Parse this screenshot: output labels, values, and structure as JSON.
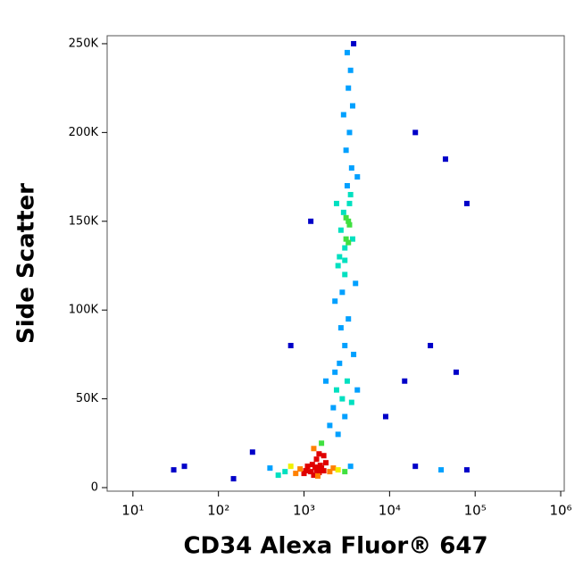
{
  "chart_data": {
    "type": "scatter",
    "x_label": "CD34 Alexa Fluor® 647",
    "y_label": "Side Scatter",
    "xscale": "log",
    "xlim": [
      5,
      1100000
    ],
    "xticks": [
      {
        "value": 10,
        "label": "10¹"
      },
      {
        "value": 100,
        "label": "10²"
      },
      {
        "value": 1000,
        "label": "10³"
      },
      {
        "value": 10000,
        "label": "10⁴"
      },
      {
        "value": 100000,
        "label": "10⁵"
      },
      {
        "value": 1000000,
        "label": "10⁶"
      }
    ],
    "ylim": [
      -2000,
      254500
    ],
    "yticks": [
      0,
      {
        "value": 50000,
        "label": "50K"
      },
      {
        "value": 100000,
        "label": "100K"
      },
      {
        "value": 150000,
        "label": "150K"
      },
      {
        "value": 200000,
        "label": "200K"
      },
      {
        "value": 250000,
        "label": "250K"
      }
    ],
    "colormap": [
      "#0000c8",
      "#00a0ff",
      "#00e0c0",
      "#40e040",
      "#f0f000",
      "#ff8000",
      "#e00000"
    ],
    "x": [
      1200,
      1400,
      1000,
      1600,
      1300,
      1100,
      1500,
      1700,
      900,
      1250,
      1450,
      1350,
      1050,
      1550,
      800,
      2000,
      2200,
      700,
      600,
      1800,
      1400,
      1500,
      1300,
      1600,
      1700,
      2500,
      3000,
      3500,
      500,
      400,
      2500,
      3000,
      2800,
      2400,
      3200,
      2600,
      3000,
      2200,
      3600,
      2000,
      2700,
      3300,
      2300,
      3800,
      1800,
      4200,
      2800,
      3000,
      2600,
      3100,
      3300,
      2900,
      3400,
      3200,
      3000,
      2700,
      3500,
      3600,
      3100,
      3400,
      2900,
      3700,
      3300,
      3500,
      3200,
      3800,
      2500,
      3700,
      2400,
      4200,
      2300,
      4000,
      3000,
      3300,
      3100,
      3400,
      20000,
      40000,
      80000,
      15000,
      30000,
      45000,
      80000,
      20000,
      150,
      250,
      40,
      30,
      700,
      1200,
      9000,
      60000
    ],
    "values": [
      9000,
      10000,
      8000,
      11000,
      7000,
      12000,
      8500,
      9500,
      10500,
      13000,
      6500,
      11500,
      9500,
      12500,
      8000,
      9000,
      11000,
      12000,
      9000,
      14000,
      16000,
      19000,
      22000,
      25000,
      18000,
      10000,
      9000,
      12000,
      7000,
      11000,
      30000,
      40000,
      50000,
      55000,
      60000,
      70000,
      80000,
      45000,
      48000,
      35000,
      90000,
      95000,
      65000,
      75000,
      60000,
      55000,
      110000,
      120000,
      130000,
      140000,
      150000,
      155000,
      160000,
      170000,
      135000,
      145000,
      165000,
      180000,
      190000,
      200000,
      210000,
      215000,
      225000,
      235000,
      245000,
      250000,
      125000,
      140000,
      160000,
      175000,
      105000,
      115000,
      128000,
      138000,
      152000,
      148000,
      12000,
      10000,
      10000,
      60000,
      80000,
      185000,
      160000,
      200000,
      5000,
      20000,
      12000,
      10000,
      80000,
      150000,
      40000,
      65000
    ]
  }
}
